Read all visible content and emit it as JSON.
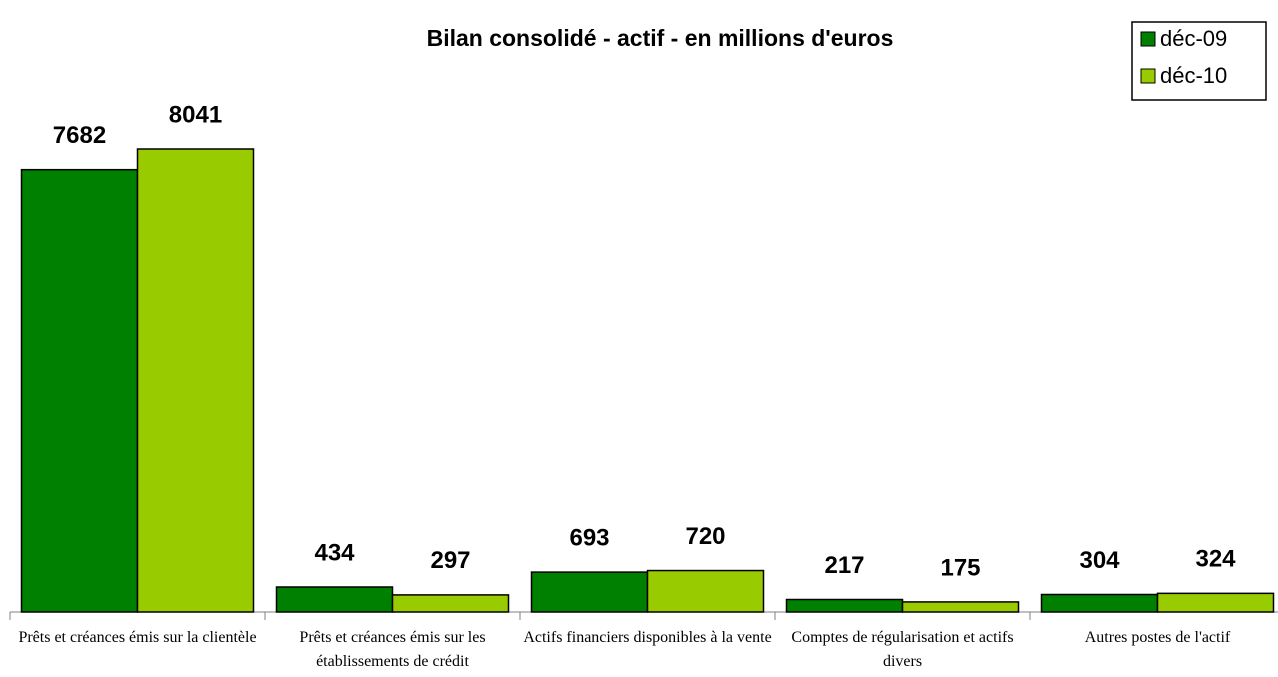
{
  "chart_data": {
    "type": "bar",
    "title": "Bilan consolidé - actif - en millions d'euros",
    "categories": [
      "Prêts et créances émis sur la clientèle",
      "Prêts et créances émis sur les établissements de crédit",
      "Actifs financiers disponibles à la vente",
      "Comptes de régularisation et actifs divers",
      "Autres postes de l'actif"
    ],
    "series": [
      {
        "name": "déc-09",
        "color": "#008000",
        "values": [
          7682,
          434,
          693,
          217,
          304
        ]
      },
      {
        "name": "déc-10",
        "color": "#99cc00",
        "values": [
          8041,
          297,
          720,
          175,
          324
        ]
      }
    ],
    "legend": "top-right"
  }
}
